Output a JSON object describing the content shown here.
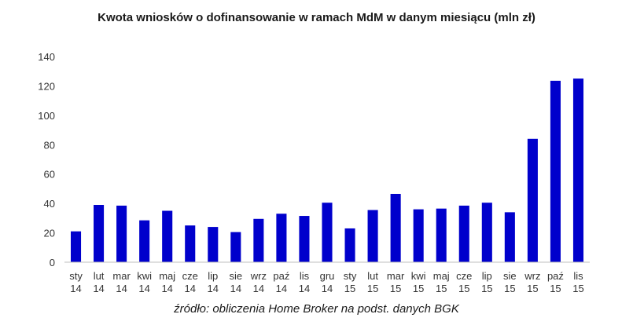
{
  "chart_data": {
    "type": "bar",
    "title": "Kwota wniosków o dofinansowanie w ramach MdM w danym miesiącu (mln zł)",
    "source": "źródło: obliczenia Home Broker na podst. danych BGK",
    "categories": [
      [
        "sty",
        "14"
      ],
      [
        "lut",
        "14"
      ],
      [
        "mar",
        "14"
      ],
      [
        "kwi",
        "14"
      ],
      [
        "maj",
        "14"
      ],
      [
        "cze",
        "14"
      ],
      [
        "lip",
        "14"
      ],
      [
        "sie",
        "14"
      ],
      [
        "wrz",
        "14"
      ],
      [
        "paź",
        "14"
      ],
      [
        "lis",
        "14"
      ],
      [
        "gru",
        "14"
      ],
      [
        "sty",
        "15"
      ],
      [
        "lut",
        "15"
      ],
      [
        "mar",
        "15"
      ],
      [
        "kwi",
        "15"
      ],
      [
        "maj",
        "15"
      ],
      [
        "cze",
        "15"
      ],
      [
        "lip",
        "15"
      ],
      [
        "sie",
        "15"
      ],
      [
        "wrz",
        "15"
      ],
      [
        "paź",
        "15"
      ],
      [
        "lis",
        "15"
      ]
    ],
    "values": [
      21,
      39,
      38.5,
      28.5,
      35,
      25,
      24,
      20.5,
      29.5,
      33,
      31.5,
      40.5,
      23,
      35.5,
      46.5,
      36,
      36.5,
      38.5,
      40.5,
      34,
      84,
      123.5,
      125
    ],
    "ylim": [
      0,
      140
    ],
    "yticks": [
      "0",
      "20",
      "40",
      "60",
      "80",
      "100",
      "120",
      "140"
    ],
    "grid": false,
    "bar_color": "#0000cc",
    "axis_color": "#bfbfbf"
  }
}
